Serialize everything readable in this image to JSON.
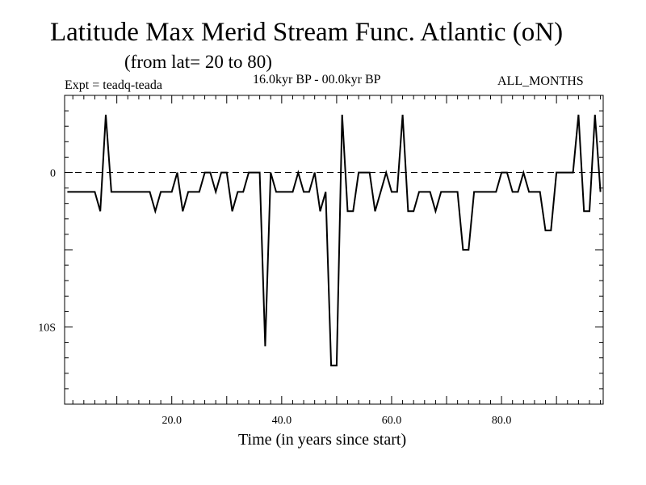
{
  "header": {
    "title": "Latitude Max Merid Stream Func. Atlantic (oN)",
    "subtitle": "(from lat= 20 to 80)",
    "experiment": "Expt = teadq-teada",
    "period": "16.0kyr BP - 00.0kyr BP",
    "months": "ALL_MONTHS"
  },
  "chart_data": {
    "type": "line",
    "title": "Latitude Max Merid Stream Func. Atlantic (oN)",
    "xlabel": "Time (in years since start)",
    "ylabel": "",
    "xlim": [
      0.5,
      98.5
    ],
    "ylim": [
      -15,
      5
    ],
    "x_ticks": [
      {
        "value": 20,
        "label": "20.0"
      },
      {
        "value": 40,
        "label": "40.0"
      },
      {
        "value": 60,
        "label": "60.0"
      },
      {
        "value": 80,
        "label": "80.0"
      }
    ],
    "y_ticks": [
      {
        "value": 0,
        "label": "0"
      },
      {
        "value": -10,
        "label": "10S"
      }
    ],
    "zero_line": "dashed",
    "series": [
      {
        "name": "teadq-teada",
        "x": [
          1,
          2,
          3,
          4,
          5,
          6,
          7,
          8,
          9,
          10,
          11,
          12,
          13,
          14,
          15,
          16,
          17,
          18,
          19,
          20,
          21,
          22,
          23,
          24,
          25,
          26,
          27,
          28,
          29,
          30,
          31,
          32,
          33,
          34,
          35,
          36,
          37,
          38,
          39,
          40,
          41,
          42,
          43,
          44,
          45,
          46,
          47,
          48,
          49,
          50,
          51,
          52,
          53,
          54,
          55,
          56,
          57,
          58,
          59,
          60,
          61,
          62,
          63,
          64,
          65,
          66,
          67,
          68,
          69,
          70,
          71,
          72,
          73,
          74,
          75,
          76,
          77,
          78,
          79,
          80,
          81,
          82,
          83,
          84,
          85,
          86,
          87,
          88,
          89,
          90,
          91,
          92,
          93,
          94,
          95,
          96,
          97,
          98
        ],
        "y": [
          -1.25,
          -1.25,
          -1.25,
          -1.25,
          -1.25,
          -1.25,
          -2.5,
          3.75,
          -1.25,
          -1.25,
          -1.25,
          -1.25,
          -1.25,
          -1.25,
          -1.25,
          -1.25,
          -2.5,
          -1.25,
          -1.25,
          -1.25,
          0,
          -2.5,
          -1.25,
          -1.25,
          -1.25,
          0,
          0,
          -1.25,
          0,
          0,
          -2.5,
          -1.25,
          -1.25,
          0,
          0,
          0,
          -11.25,
          0,
          -1.25,
          -1.25,
          -1.25,
          -1.25,
          0,
          -1.25,
          -1.25,
          0,
          -2.5,
          -1.25,
          -12.5,
          -12.5,
          3.75,
          -2.5,
          -2.5,
          0,
          0,
          0,
          -2.5,
          -1.25,
          0,
          -1.25,
          -1.25,
          3.75,
          -2.5,
          -2.5,
          -1.25,
          -1.25,
          -1.25,
          -2.5,
          -1.25,
          -1.25,
          -1.25,
          -1.25,
          -5,
          -5,
          -1.25,
          -1.25,
          -1.25,
          -1.25,
          -1.25,
          0,
          0,
          -1.25,
          -1.25,
          0,
          -1.25,
          -1.25,
          -1.25,
          -3.75,
          -3.75,
          0,
          0,
          0,
          0,
          3.75,
          -2.5,
          -2.5,
          3.75,
          -1.25
        ]
      }
    ]
  }
}
